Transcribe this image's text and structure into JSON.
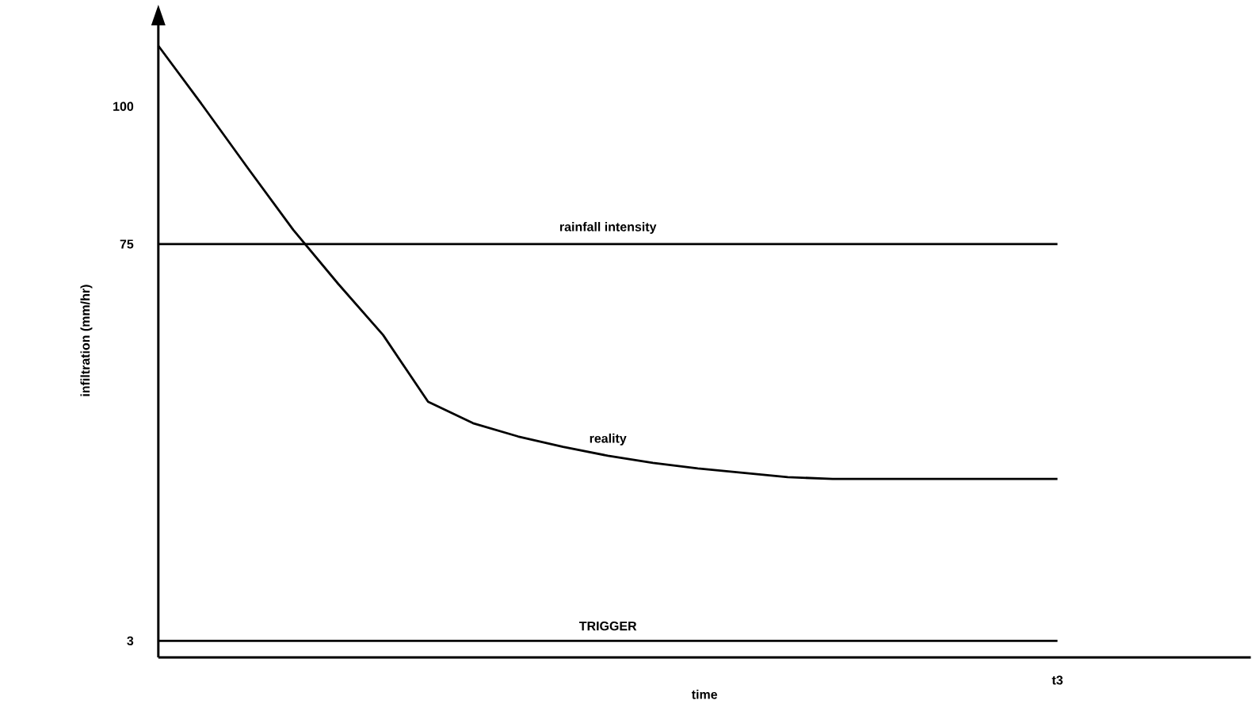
{
  "chart_data": {
    "type": "line",
    "xlabel": "time",
    "ylabel": "infiltration (mm/hr)",
    "annotations": [
      "t3"
    ],
    "categories": [
      null,
      null,
      null,
      null,
      null,
      null,
      null,
      null,
      null,
      null,
      null,
      null,
      null,
      null,
      null,
      null,
      null,
      null,
      null,
      null,
      null,
      null,
      null,
      null,
      null
    ],
    "ylim": [
      0,
      115
    ],
    "yticks": [
      {
        "value": 3,
        "label": "3"
      },
      {
        "value": 75,
        "label": "75"
      },
      {
        "value": 100,
        "label": "100"
      }
    ],
    "grid": false,
    "legend": false,
    "marker": "none",
    "line_style": "solid",
    "series": [
      {
        "name": "reality",
        "color": "#000000",
        "values": [
          111,
          100,
          88.7,
          77.6,
          67.8,
          58.5,
          46.4,
          42.5,
          40.1,
          38.2,
          36.6,
          35.3,
          34.3,
          33.5,
          32.7,
          32.4,
          32.4,
          32.4,
          32.4,
          32.4,
          32.4,
          null,
          null,
          null,
          null
        ]
      },
      {
        "name": "rainfall intensity",
        "color": "#000000",
        "values": [
          75,
          75,
          75,
          75,
          75,
          75,
          75,
          75,
          75,
          75,
          75,
          75,
          75,
          75,
          75,
          75,
          75,
          75,
          75,
          75,
          75,
          null,
          null,
          null,
          null
        ]
      },
      {
        "name": "TRIGGER",
        "color": "#000000",
        "values": [
          3,
          3,
          3,
          3,
          3,
          3,
          3,
          3,
          3,
          3,
          3,
          3,
          3,
          3,
          3,
          3,
          3,
          3,
          3,
          3,
          3,
          null,
          null,
          null,
          null
        ]
      }
    ]
  }
}
